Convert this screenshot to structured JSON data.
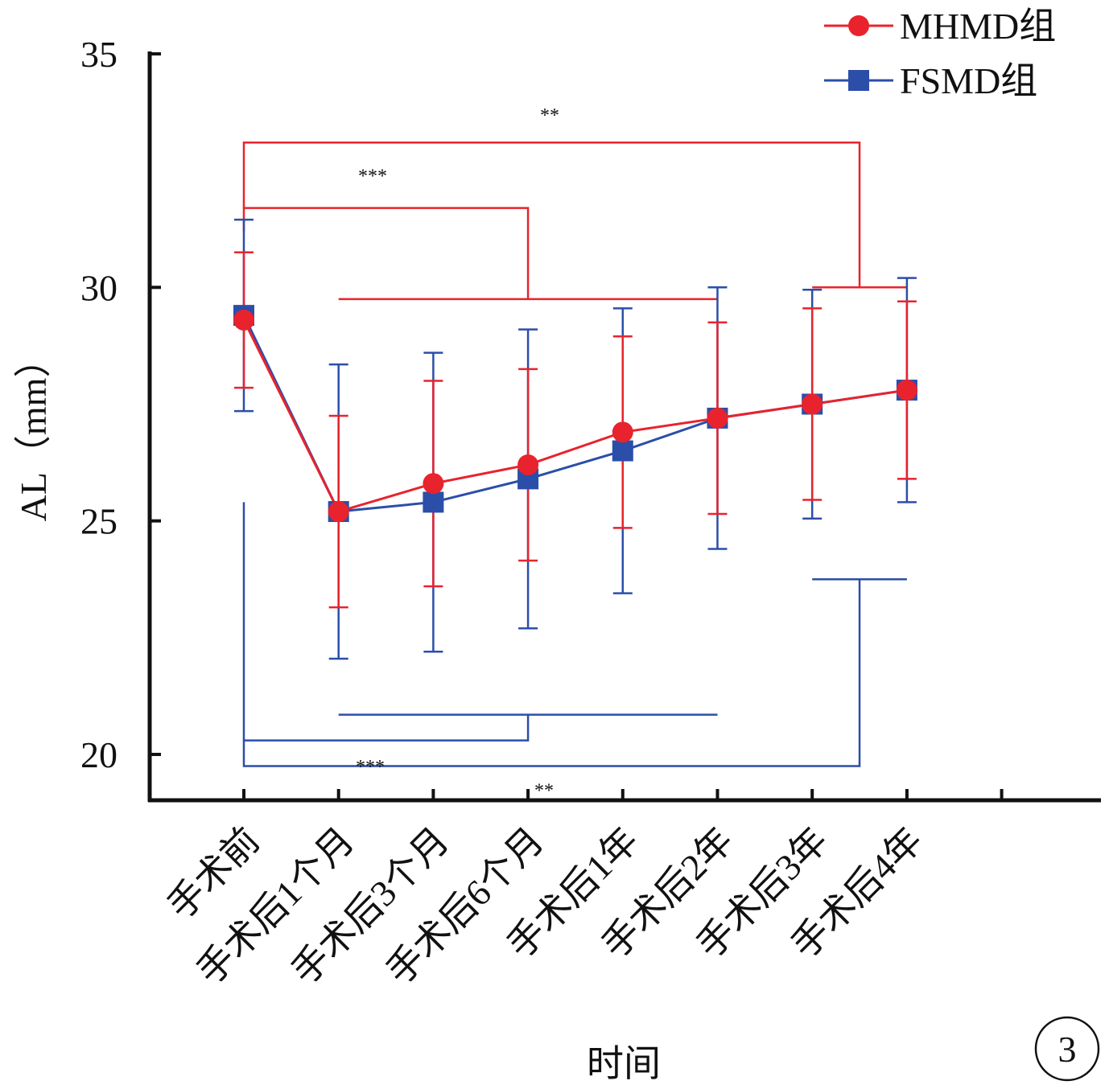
{
  "chart_data": {
    "type": "line",
    "xlabel": "时间",
    "ylabel": "AL（mm）",
    "ylim": [
      19.0,
      35.0
    ],
    "yticks": [
      20,
      25,
      30,
      35
    ],
    "categories": [
      "手术前",
      "手术后1个月",
      "手术后3个月",
      "手术后6个月",
      "手术后1年",
      "手术后2年",
      "手术后3年",
      "手术后4年"
    ],
    "series": [
      {
        "name": "MHMD组",
        "color": "#e8232d",
        "marker": "circle",
        "values": [
          29.3,
          25.2,
          25.8,
          26.2,
          26.9,
          27.2,
          27.5,
          27.8
        ],
        "errors": [
          1.45,
          2.05,
          2.2,
          2.05,
          2.05,
          2.05,
          2.05,
          1.9
        ]
      },
      {
        "name": "FSMD组",
        "color": "#2b4ea8",
        "marker": "square",
        "values": [
          29.4,
          25.2,
          25.4,
          25.9,
          26.5,
          27.2,
          27.5,
          27.8
        ],
        "errors": [
          2.05,
          3.15,
          3.2,
          3.2,
          3.05,
          2.8,
          2.45,
          2.4
        ]
      }
    ],
    "legend_position": "top-right",
    "grid": false,
    "significance": [
      {
        "label": "**",
        "series": "MHMD组"
      },
      {
        "label": "***",
        "series": "MHMD组"
      },
      {
        "label": "***",
        "series": "FSMD组"
      },
      {
        "label": "**",
        "series": "FSMD组"
      }
    ],
    "panel_label": "3"
  }
}
